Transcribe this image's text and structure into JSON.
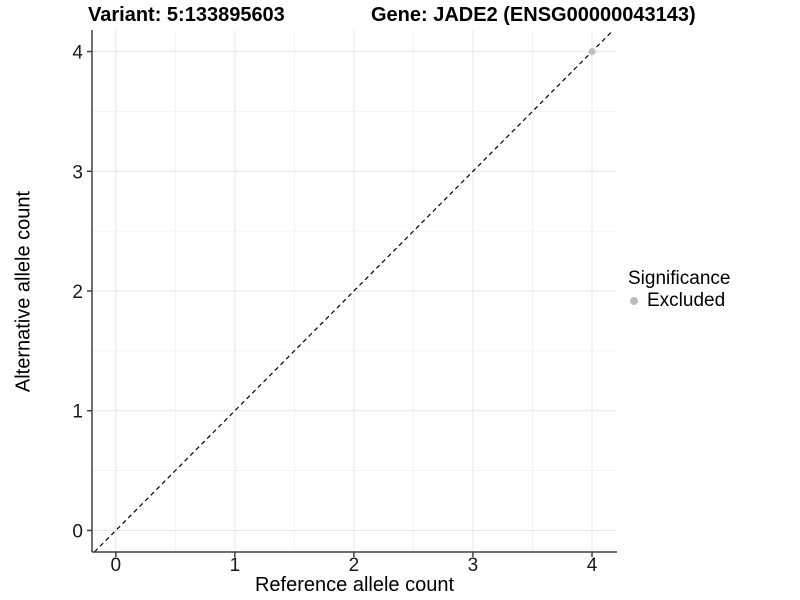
{
  "header": {
    "variant_title": "Variant: 5:133895603",
    "gene_title": "Gene: JADE2 (ENSG00000043143)"
  },
  "legend": {
    "title": "Significance",
    "items": [
      {
        "label": "Excluded",
        "color": "#bebebe"
      }
    ]
  },
  "chart_data": {
    "type": "scatter",
    "title_left": "Variant: 5:133895603",
    "title_right": "Gene: JADE2 (ENSG00000043143)",
    "xlabel": "Reference allele count",
    "ylabel": "Alternative allele count",
    "xlim": [
      -0.2,
      4.21
    ],
    "ylim": [
      -0.18,
      4.18
    ],
    "x_ticks": [
      0,
      1,
      2,
      3,
      4
    ],
    "y_ticks": [
      0,
      1,
      2,
      3,
      4
    ],
    "x_minor_ticks": [
      0.5,
      1.5,
      2.5,
      3.5
    ],
    "y_minor_ticks": [
      0.5,
      1.5,
      2.5,
      3.5
    ],
    "grid": "major+minor",
    "legend_title": "Significance",
    "legend_position": "right",
    "reference_line": {
      "type": "identity",
      "slope": 1,
      "intercept": 0,
      "style": "dashed",
      "color": "#000000"
    },
    "series": [
      {
        "name": "Excluded",
        "color": "#bebebe",
        "points": [
          [
            4,
            4
          ]
        ]
      }
    ]
  },
  "colors": {
    "background": "#ffffff",
    "axis_line": "#404040",
    "grid_major": "#e7e7e7",
    "grid_minor": "#f2f2f2",
    "tick_label": "#1a1a1a",
    "dashed_line": "#000000",
    "excluded_point": "#bebebe"
  }
}
